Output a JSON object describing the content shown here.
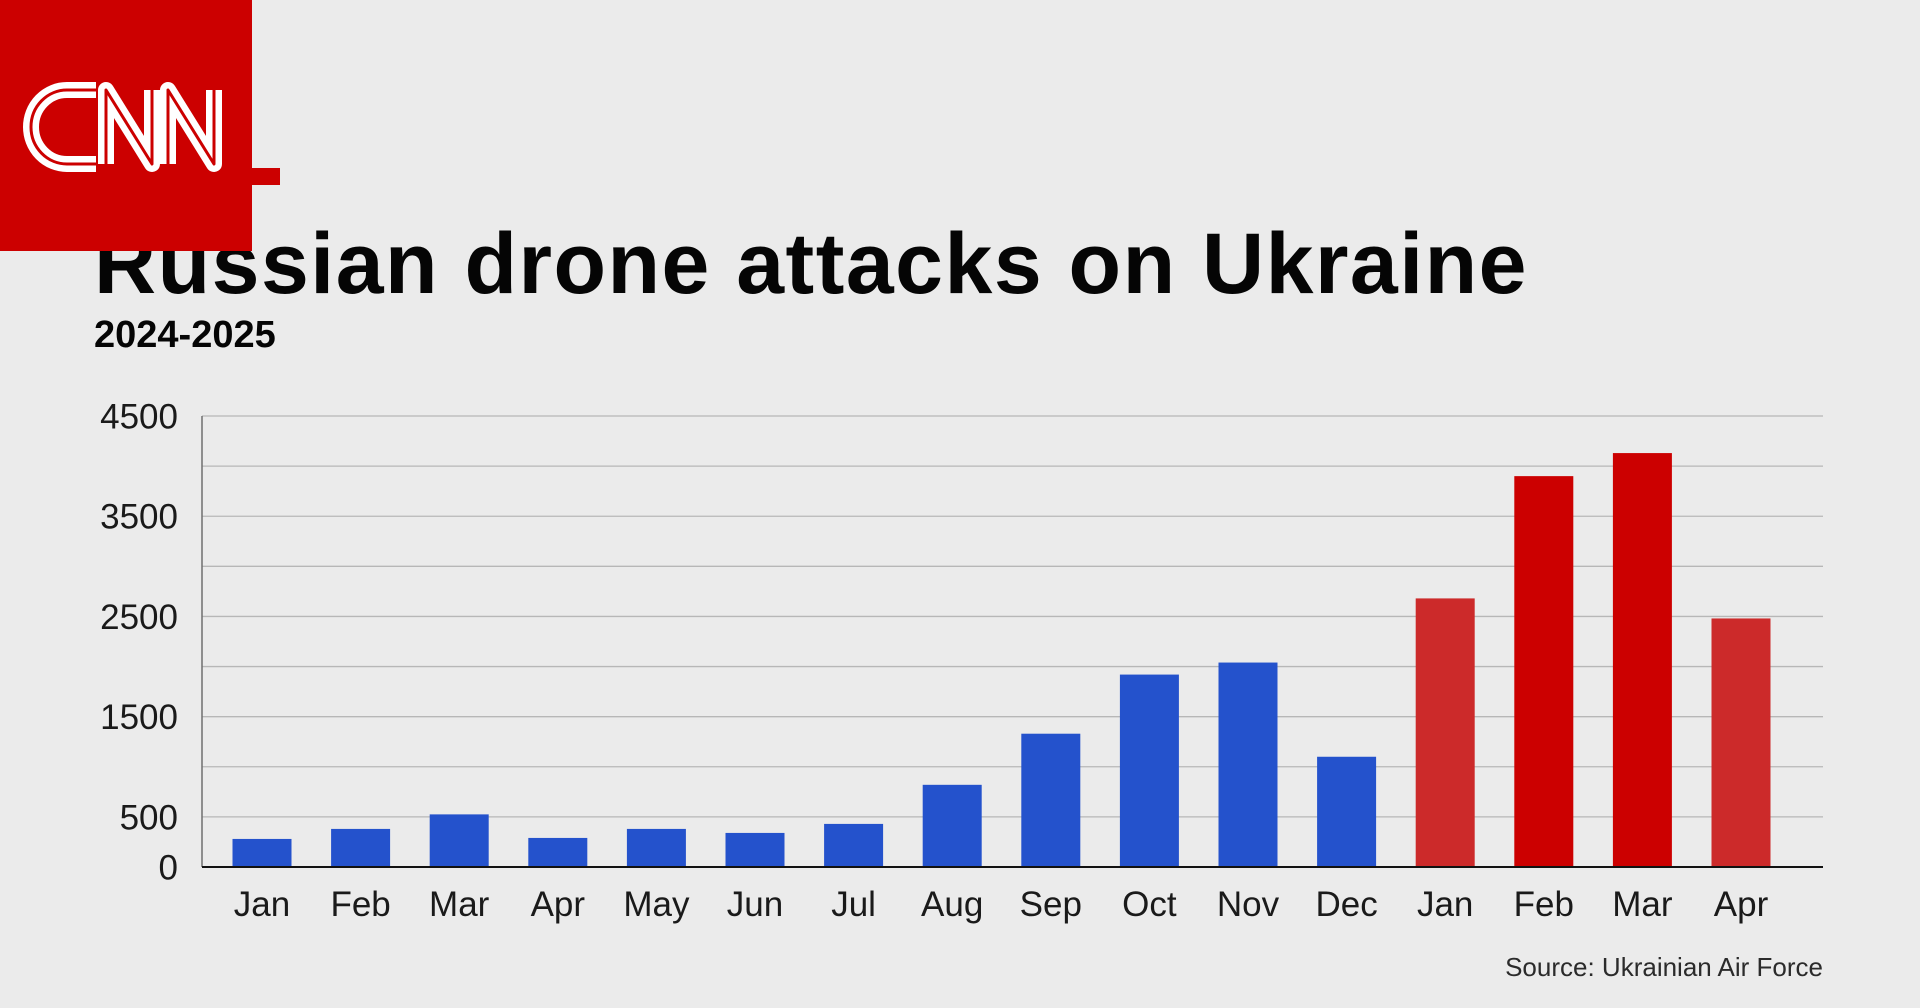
{
  "logo": {
    "text": "CNN"
  },
  "colors": {
    "background": "#ebebeb",
    "brand_red": "#cc0000"
  },
  "chart_data": {
    "type": "bar",
    "title": "Russian drone attacks on Ukraine",
    "subtitle": "2024-2025",
    "source": "Source: Ukrainian Air Force",
    "xlabel": "",
    "ylabel": "",
    "categories": [
      "Jan",
      "Feb",
      "Mar",
      "Apr",
      "May",
      "Jun",
      "Jul",
      "Aug",
      "Sep",
      "Oct",
      "Nov",
      "Dec",
      "Jan",
      "Feb",
      "Mar",
      "Apr"
    ],
    "series": [
      {
        "values": [
          280,
          380,
          525,
          290,
          380,
          340,
          430,
          820,
          1330,
          1920,
          2040,
          1100,
          2680,
          3900,
          4130,
          2480
        ],
        "colors": [
          "#2452cc",
          "#2452cc",
          "#2452cc",
          "#2452cc",
          "#2452cc",
          "#2452cc",
          "#2452cc",
          "#2452cc",
          "#2452cc",
          "#2452cc",
          "#2452cc",
          "#2452cc",
          "#cc2a2a",
          "#cc0000",
          "#cc0000",
          "#cc2a2a"
        ]
      }
    ],
    "ylim": [
      0,
      4500
    ],
    "yticks": [
      0,
      500,
      1500,
      2500,
      3500,
      4500
    ],
    "grid": true,
    "grid_step": 500,
    "legend": "none"
  }
}
